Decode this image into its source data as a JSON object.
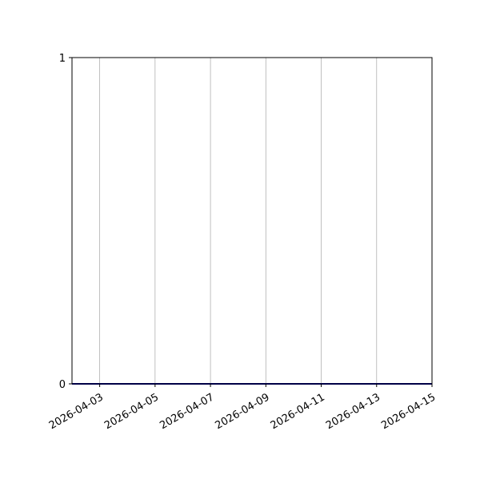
{
  "chart_data": {
    "type": "line",
    "title": "",
    "xlabel": "",
    "ylabel": "",
    "x_axis_type": "date",
    "xlim": [
      "2026-04-02",
      "2026-04-15"
    ],
    "ylim": [
      0,
      1
    ],
    "x_ticks": [
      "2026-04-03",
      "2026-04-05",
      "2026-04-07",
      "2026-04-09",
      "2026-04-11",
      "2026-04-13",
      "2026-04-15"
    ],
    "y_ticks": [
      "0",
      "1"
    ],
    "grid": "vertical (x-axis only)",
    "legend": "none",
    "series": [
      {
        "color": "#00008b",
        "x": [
          "2026-04-02",
          "2026-04-03",
          "2026-04-04",
          "2026-04-05",
          "2026-04-06",
          "2026-04-07",
          "2026-04-08",
          "2026-04-09",
          "2026-04-10",
          "2026-04-11",
          "2026-04-12",
          "2026-04-13",
          "2026-04-14",
          "2026-04-15"
        ],
        "y": [
          0,
          0,
          0,
          0,
          0,
          0,
          0,
          0,
          0,
          0,
          0,
          0,
          0,
          0
        ]
      }
    ],
    "grid_color": "#b0b0b0"
  }
}
